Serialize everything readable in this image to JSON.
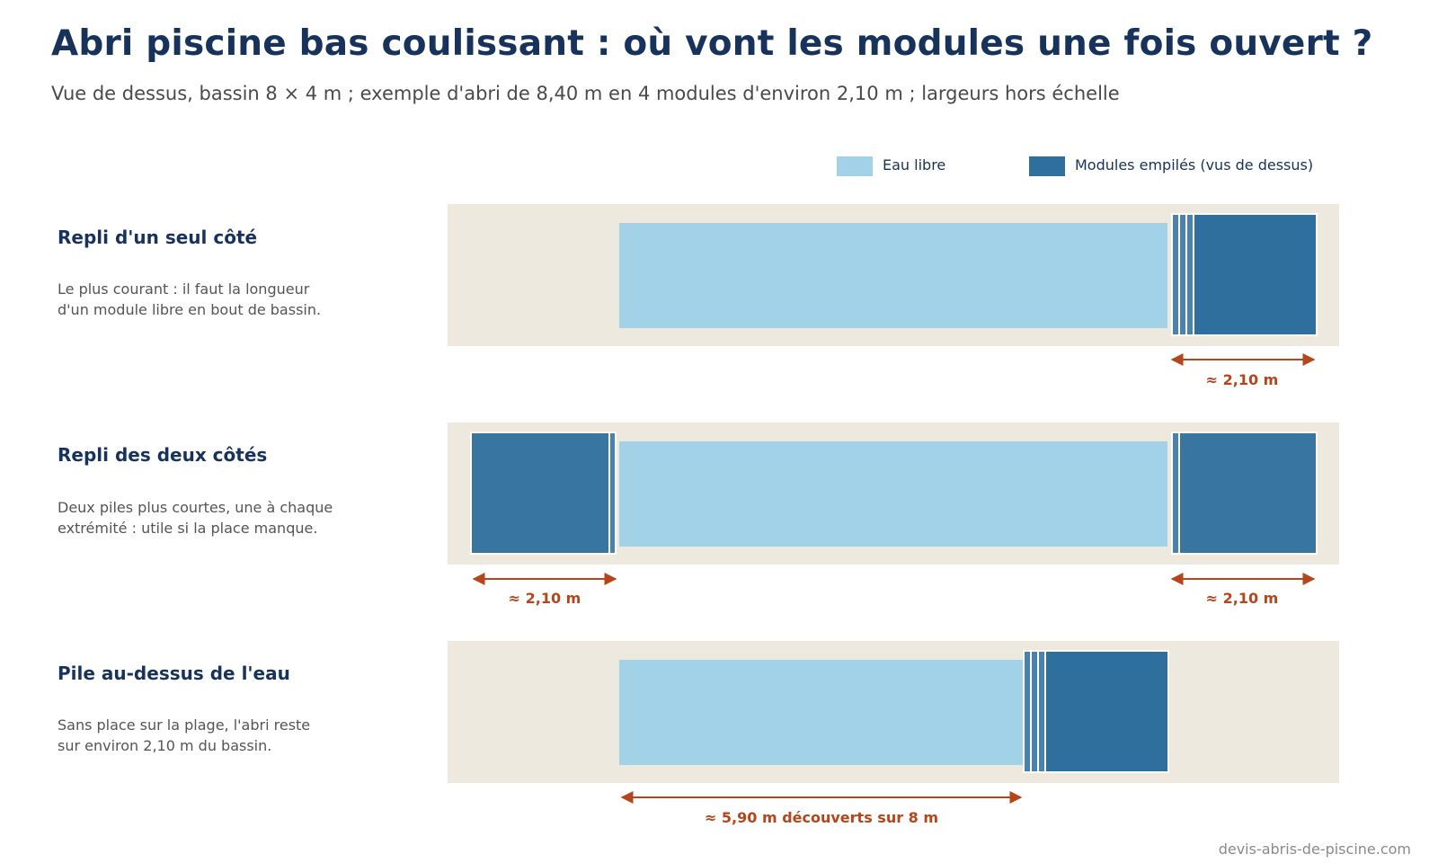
{
  "title": "Abri piscine bas coulissant : où vont les modules une fois ouvert ?",
  "subtitle": "Vue de dessus, bassin 8 × 4 m ; exemple d'abri de 8,40 m en 4 modules d'environ 2,10 m ; largeurs hors échelle",
  "legend": [
    {
      "label": "Eau libre",
      "color": "#a2d2e7"
    },
    {
      "label": "Modules empilés (vus de dessus)",
      "color": "#2f6f9e"
    }
  ],
  "colors": {
    "plage": "#eee9de",
    "eau": "#a2d2e7",
    "module": "#2f6f9e",
    "module_left": "#3875a0",
    "stripe": "#4a82ad",
    "dimension": "#b5451b"
  },
  "rows": [
    {
      "title": "Repli d'un seul côté",
      "desc": [
        "Le plus courant : il faut la longueur",
        "d'un module libre en bout de bassin."
      ],
      "dimensions": [
        "≈ 2,10 m"
      ]
    },
    {
      "title": "Repli des deux côtés",
      "desc": [
        "Deux piles plus courtes, une à chaque",
        "extrémité : utile si la place manque."
      ],
      "dimensions": [
        "≈ 2,10 m",
        "≈ 2,10 m"
      ]
    },
    {
      "title": "Pile au-dessus de l'eau",
      "desc": [
        "Sans place sur la plage, l'abri reste",
        "sur environ 2,10 m du bassin."
      ],
      "dimensions": [
        "≈ 5,90 m découverts sur 8 m"
      ]
    }
  ],
  "footer": "devis-abris-de-piscine.com"
}
